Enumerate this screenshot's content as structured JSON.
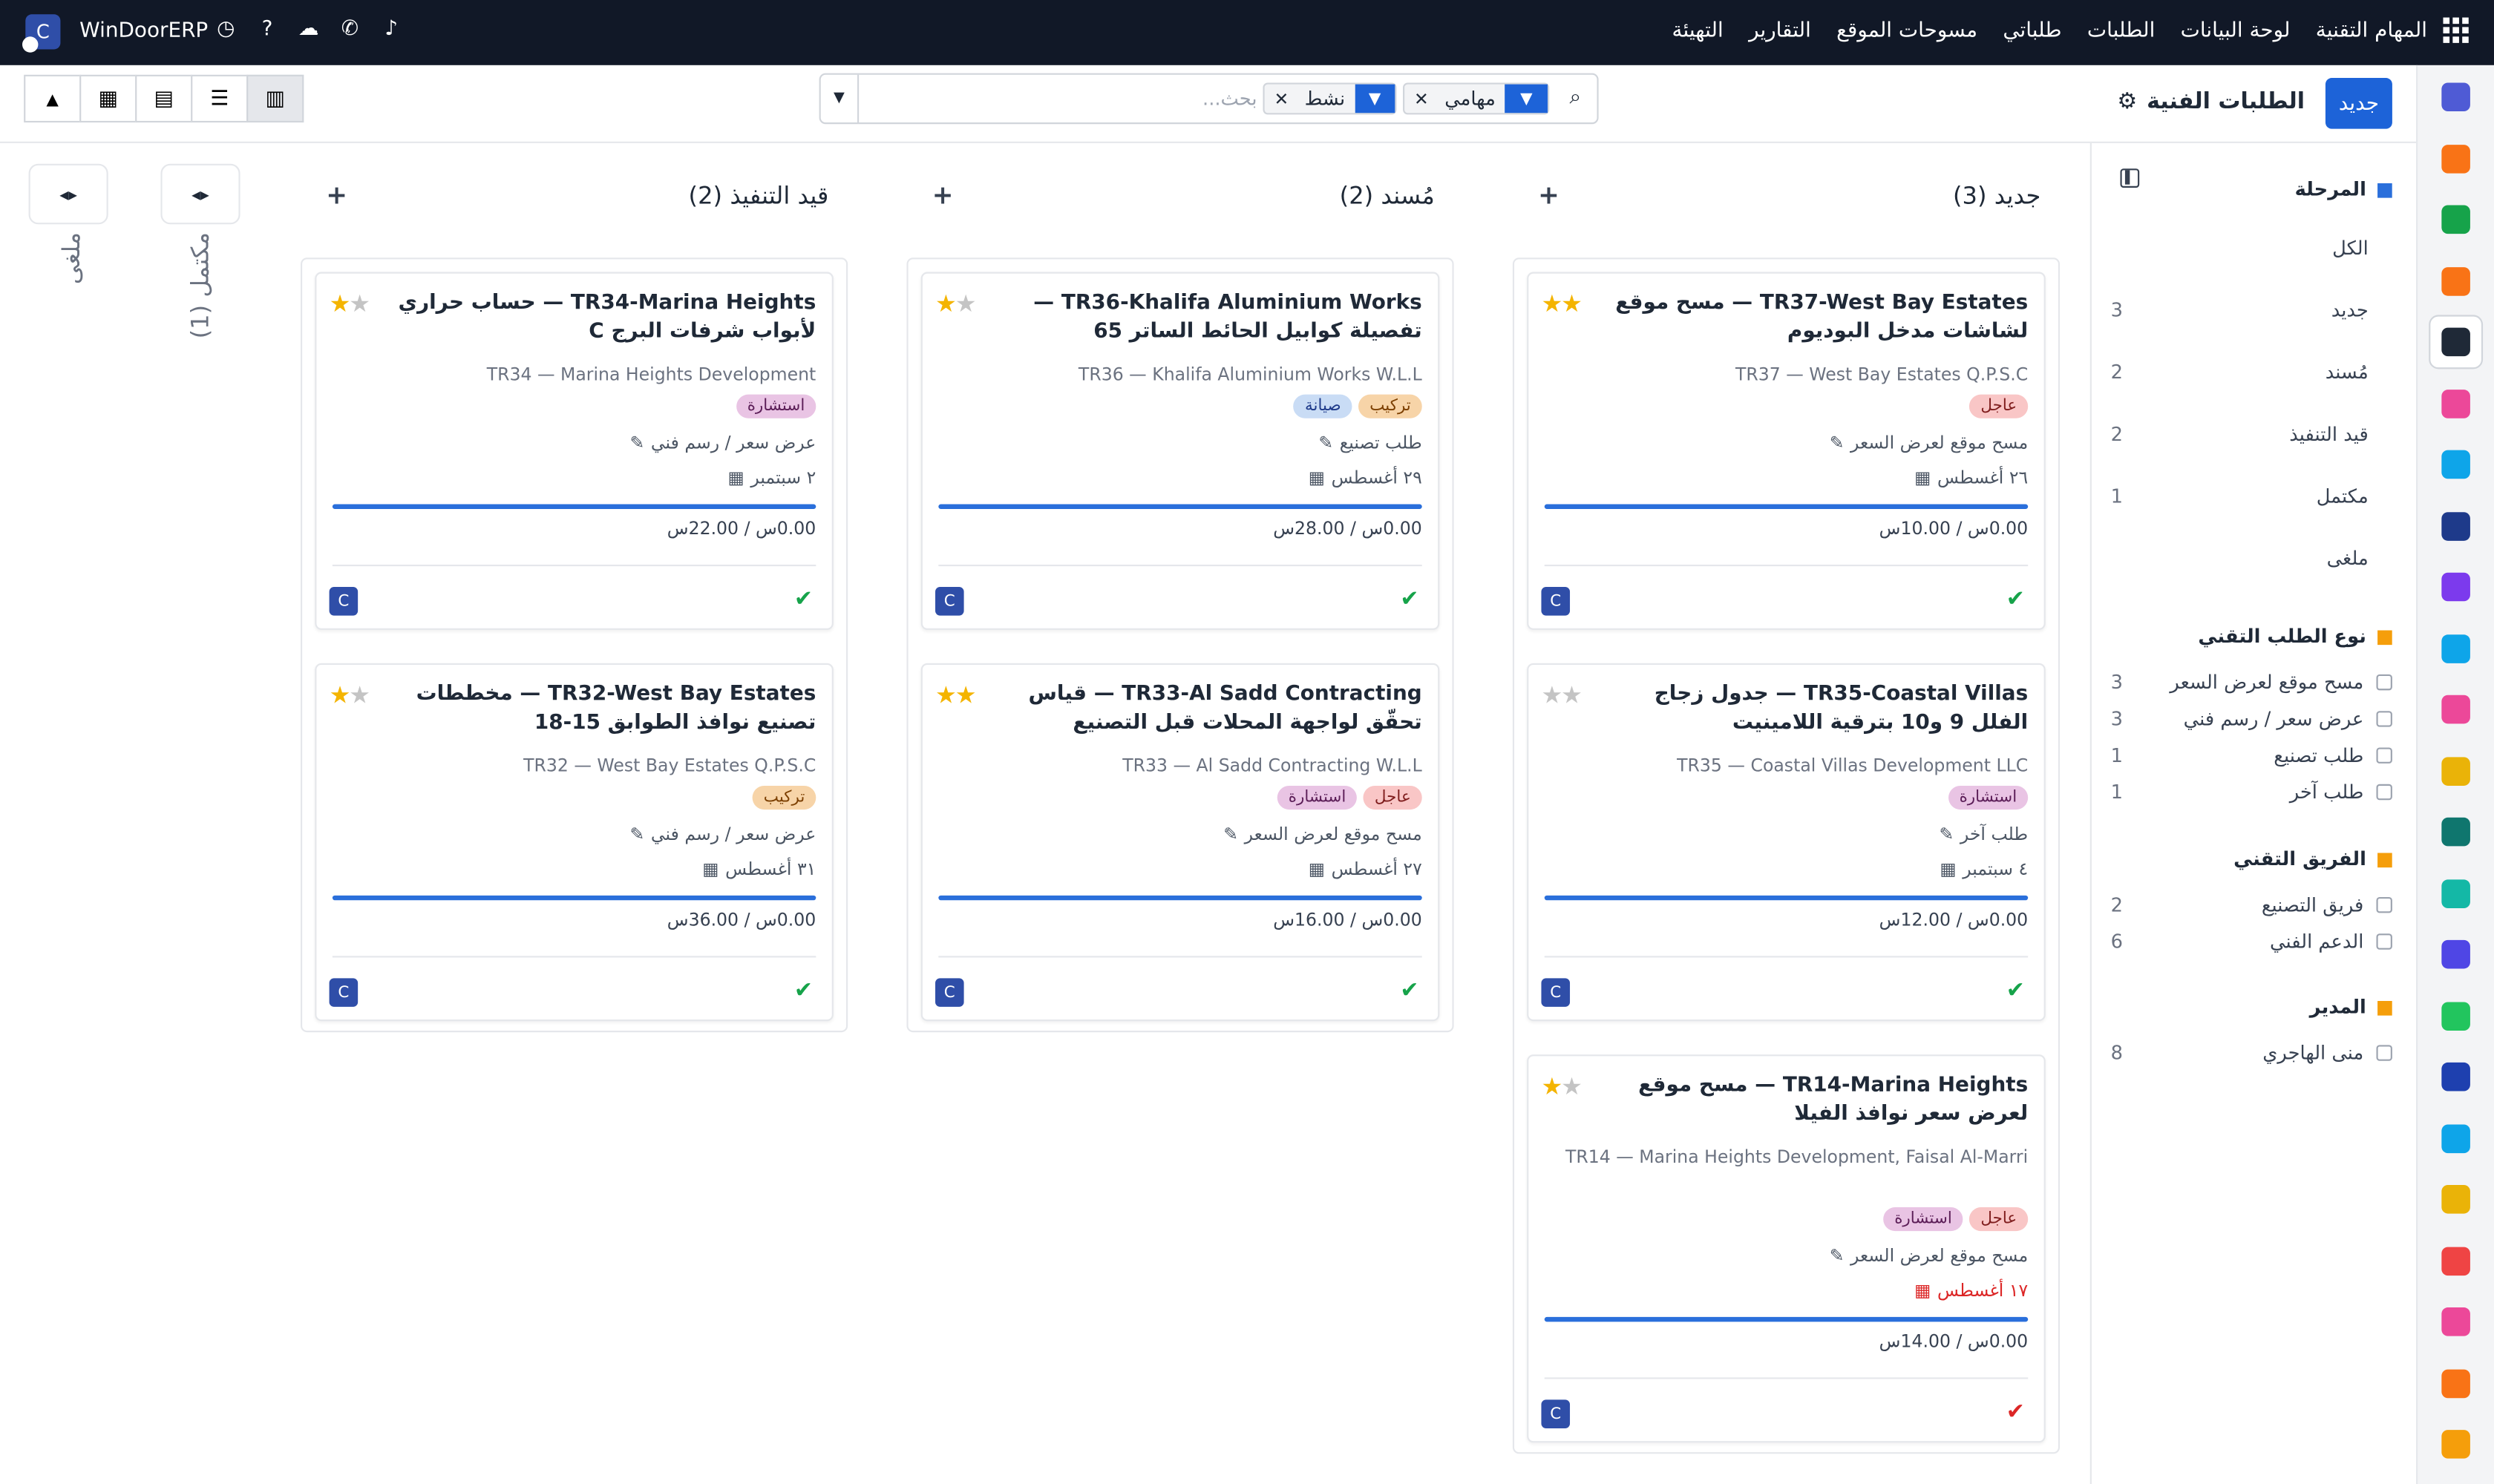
{
  "topbar": {
    "app_name": "WinDoorERP",
    "logo_letter": "C",
    "menu": [
      "المهام التقنية",
      "لوحة البيانات",
      "الطلبات",
      "طلباتي",
      "مسوحات الموقع",
      "التقارير",
      "التهيئة"
    ]
  },
  "control": {
    "new_label": "جديد",
    "page_title": "الطلبات الفنية",
    "search_placeholder": "بحث...",
    "facets": [
      {
        "label": "مهامي"
      },
      {
        "label": "نشط"
      }
    ]
  },
  "filters": {
    "stage_title": "المرحلة",
    "stages": [
      {
        "label": "الكل",
        "count": ""
      },
      {
        "label": "جديد",
        "count": "3"
      },
      {
        "label": "مُسند",
        "count": "2"
      },
      {
        "label": "قيد التنفيذ",
        "count": "2"
      },
      {
        "label": "مكتمل",
        "count": "1"
      },
      {
        "label": "ملغى",
        "count": ""
      }
    ],
    "type_title": "نوع الطلب التقني",
    "types": [
      {
        "label": "مسح موقع لعرض السعر",
        "count": "3"
      },
      {
        "label": "عرض سعر / رسم فني",
        "count": "3"
      },
      {
        "label": "طلب تصنيع",
        "count": "1"
      },
      {
        "label": "طلب آخر",
        "count": "1"
      }
    ],
    "team_title": "الفريق التقني",
    "teams": [
      {
        "label": "فريق التصنيع",
        "count": "2"
      },
      {
        "label": "الدعم الفني",
        "count": "6"
      }
    ],
    "manager_title": "المدير",
    "managers": [
      {
        "label": "منى الهاجري",
        "count": "8"
      }
    ]
  },
  "columns": [
    {
      "title": "جديد (3)",
      "cards": [
        {
          "title": "TR37-West Bay Estates — مسح موقع لشاشات مدخل البوديوم",
          "partner": "TR37 — West Bay Estates Q.P.S.C",
          "tags": [
            {
              "label": "عاجل",
              "kind": "urgent"
            }
          ],
          "type": "مسح موقع لعرض السعر",
          "date": "٢٦ أغسطس",
          "date_overdue": false,
          "hours": "0.00س / 10.00س",
          "stars": 2,
          "avatar": "C",
          "status": "done"
        },
        {
          "title": "TR35-Coastal Villas — جدول زجاج الفلل 9 و10 بترقية اللامينيت",
          "partner": "TR35 — Coastal Villas Development LLC",
          "tags": [
            {
              "label": "استشارة",
              "kind": "consult"
            }
          ],
          "type": "طلب آخر",
          "date": "٤ سبتمبر",
          "date_overdue": false,
          "hours": "0.00س / 12.00س",
          "stars": 0,
          "avatar": "C",
          "status": "done"
        },
        {
          "title": "TR14-Marina Heights — مسح موقع لعرض سعر نوافذ الفيلا",
          "partner": "TR14 — Marina Heights Development, Faisal Al-Marri",
          "tags": [
            {
              "label": "عاجل",
              "kind": "urgent"
            },
            {
              "label": "استشارة",
              "kind": "consult"
            }
          ],
          "type": "مسح موقع لعرض السعر",
          "date": "١٧ أغسطس",
          "date_overdue": true,
          "hours": "0.00س / 14.00س",
          "stars": 1,
          "avatar": "C",
          "status": "blocked"
        }
      ]
    },
    {
      "title": "مُسند (2)",
      "cards": [
        {
          "title": "TR36-Khalifa Aluminium Works — تفصيلة كوابيل الحائط الساتر 65",
          "partner": "TR36 — Khalifa Aluminium Works W.L.L",
          "tags": [
            {
              "label": "تركيب",
              "kind": "install"
            },
            {
              "label": "صيانة",
              "kind": "maint"
            }
          ],
          "type": "طلب تصنيع",
          "date": "٢٩ أغسطس",
          "date_overdue": false,
          "hours": "0.00س / 28.00س",
          "stars": 1,
          "avatar": "C",
          "status": "done"
        },
        {
          "title": "TR33-Al Sadd Contracting — قياس تحقّق لواجهة المحلات قبل التصنيع",
          "partner": "TR33 — Al Sadd Contracting W.L.L",
          "tags": [
            {
              "label": "عاجل",
              "kind": "urgent"
            },
            {
              "label": "استشارة",
              "kind": "consult"
            }
          ],
          "type": "مسح موقع لعرض السعر",
          "date": "٢٧ أغسطس",
          "date_overdue": false,
          "hours": "0.00س / 16.00س",
          "stars": 2,
          "avatar": "C",
          "status": "done"
        }
      ]
    },
    {
      "title": "قيد التنفيذ (2)",
      "cards": [
        {
          "title": "TR34-Marina Heights — حساب حراري لأبواب شرفات البرج C",
          "partner": "TR34 — Marina Heights Development",
          "tags": [
            {
              "label": "استشارة",
              "kind": "consult"
            }
          ],
          "type": "عرض سعر / رسم فني",
          "date": "٢ سبتمبر",
          "date_overdue": false,
          "hours": "0.00س / 22.00س",
          "stars": 1,
          "avatar": "C",
          "status": "done"
        },
        {
          "title": "TR32-West Bay Estates — مخططات تصنيع نوافذ الطوابق 15-18",
          "partner": "TR32 — West Bay Estates Q.P.S.C",
          "tags": [
            {
              "label": "تركيب",
              "kind": "install"
            }
          ],
          "type": "عرض سعر / رسم فني",
          "date": "٣١ أغسطس",
          "date_overdue": false,
          "hours": "0.00س / 36.00س",
          "stars": 1,
          "avatar": "C",
          "status": "done"
        }
      ]
    }
  ],
  "folded": [
    {
      "title": "مكتمل (1)"
    },
    {
      "title": "ملغى"
    }
  ],
  "sidebar_apps": [
    "#4f5bd5",
    "#f97316",
    "#16a34a",
    "#f97316",
    "#1f2937",
    "#ec4899",
    "#0ea5e9",
    "#1e3a8a",
    "#7c3aed",
    "#0ea5e9",
    "#ec4899",
    "#eab308",
    "#0f766e",
    "#14b8a6",
    "#4f46e5",
    "#22c55e",
    "#1e40af",
    "#0ea5e9",
    "#eab308",
    "#ef4444",
    "#ec4899",
    "#f97316",
    "#f59e0b"
  ]
}
